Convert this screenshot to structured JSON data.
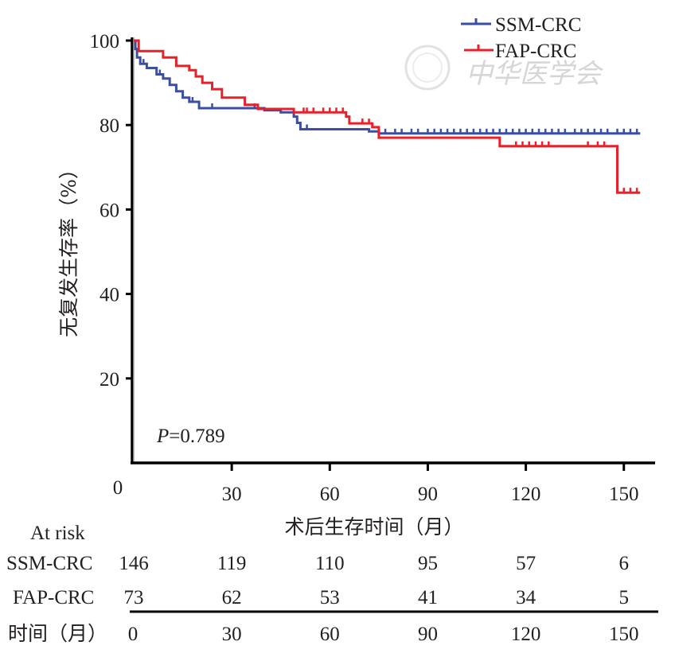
{
  "chart_data": {
    "type": "line",
    "subtype": "kaplan-meier",
    "title": "",
    "xlabel": "术后生存时间（月）",
    "ylabel": "无复发生存率（%）",
    "xlim": [
      0,
      160
    ],
    "ylim": [
      0,
      100
    ],
    "x_ticks": [
      0,
      30,
      60,
      90,
      120,
      150
    ],
    "x_tick_labels": [
      "0",
      "30",
      "60",
      "90",
      "120",
      "150"
    ],
    "y_ticks": [
      20,
      40,
      60,
      80,
      100
    ],
    "y_tick_labels": [
      "20",
      "40",
      "60",
      "80",
      "100"
    ],
    "grid": false,
    "legend_position": "top-right",
    "annotation": {
      "p_label": "P",
      "p_value": "=0.789"
    },
    "watermark": "中华医学会",
    "series": [
      {
        "name": "SSM-CRC",
        "color": "#3a4fa3",
        "steps": [
          [
            0,
            100
          ],
          [
            0.5,
            98
          ],
          [
            1,
            96
          ],
          [
            2,
            94.5
          ],
          [
            4,
            93.5
          ],
          [
            7,
            92
          ],
          [
            9,
            91
          ],
          [
            11,
            89.5
          ],
          [
            13,
            88
          ],
          [
            15,
            86.5
          ],
          [
            17,
            85.5
          ],
          [
            20,
            84
          ],
          [
            40,
            83.5
          ],
          [
            45,
            83
          ],
          [
            49,
            82
          ],
          [
            50,
            80.5
          ],
          [
            51,
            79
          ],
          [
            72,
            78.5
          ],
          [
            75,
            78
          ],
          [
            155,
            78
          ]
        ],
        "censor": [
          3,
          8,
          18,
          24,
          37,
          53,
          77,
          80,
          82,
          85,
          87,
          90,
          92,
          94,
          96,
          98,
          100,
          102,
          104,
          106,
          108,
          110,
          112,
          114,
          116,
          118,
          120,
          122,
          124,
          126,
          128,
          130,
          132,
          135,
          137,
          139,
          141,
          143,
          145,
          148,
          150,
          152,
          154
        ]
      },
      {
        "name": "FAP-CRC",
        "color": "#e8202a",
        "steps": [
          [
            0,
            100
          ],
          [
            1.5,
            97.5
          ],
          [
            9,
            96
          ],
          [
            13,
            94
          ],
          [
            17,
            93
          ],
          [
            19,
            91.5
          ],
          [
            21,
            90
          ],
          [
            24,
            88.5
          ],
          [
            27,
            86.5
          ],
          [
            34,
            84.8
          ],
          [
            38,
            83.8
          ],
          [
            49,
            83
          ],
          [
            65,
            82
          ],
          [
            66,
            80.4
          ],
          [
            73,
            79.5
          ],
          [
            75,
            77
          ],
          [
            112,
            75
          ],
          [
            148,
            64
          ],
          [
            155,
            64
          ]
        ],
        "censor": [
          52,
          53,
          55,
          58,
          60,
          62,
          64,
          70,
          72,
          117,
          119,
          121,
          123,
          125,
          127,
          139,
          142,
          144,
          150,
          152,
          154
        ]
      }
    ],
    "at_risk": {
      "header": "At risk",
      "rows": [
        {
          "label": "SSM-CRC",
          "values": [
            "146",
            "119",
            "110",
            "95",
            "57",
            "6"
          ]
        },
        {
          "label": "FAP-CRC",
          "values": [
            "73",
            "62",
            "53",
            "41",
            "34",
            "5"
          ]
        }
      ],
      "time_label": "时间（月）",
      "times": [
        "0",
        "30",
        "60",
        "90",
        "120",
        "150"
      ]
    }
  }
}
